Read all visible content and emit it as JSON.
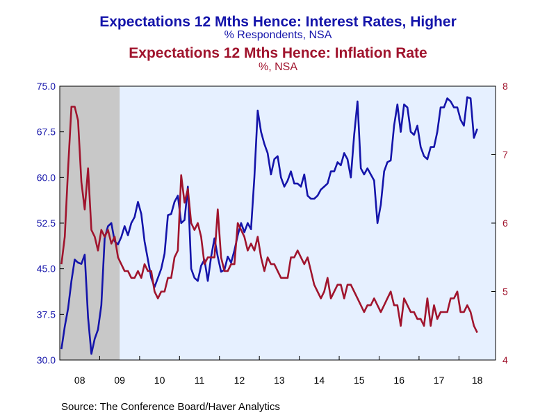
{
  "chart_data": {
    "type": "line",
    "titles": [
      {
        "title": "Expectations 12 Mths Hence: Interest Rates, Higher",
        "subtitle": "% Respondents, NSA"
      },
      {
        "title": "Expectations 12 Mths Hence: Inflation Rate",
        "subtitle": "%, NSA"
      }
    ],
    "source": "Source:  The Conference Board/Haver Analytics",
    "x_tick_labels": [
      "08",
      "09",
      "10",
      "11",
      "12",
      "13",
      "14",
      "15",
      "16",
      "17",
      "18"
    ],
    "x_range": [
      "2008-01",
      "2018-11"
    ],
    "left_axis": {
      "min": 30.0,
      "max": 75.0,
      "ticks": [
        "30.0",
        "37.5",
        "45.0",
        "52.5",
        "60.0",
        "67.5",
        "75.0"
      ]
    },
    "right_axis": {
      "min": 4,
      "max": 8,
      "ticks": [
        "4",
        "5",
        "6",
        "7",
        "8"
      ]
    },
    "recession_shading": {
      "start": "2008-01",
      "end": "2009-06",
      "color": "#c8c8c8"
    },
    "plot_background": "#e6f0ff",
    "series": [
      {
        "name": "Interest Rates, Higher",
        "axis": "left",
        "color": "#1414aa",
        "start": "2008-01",
        "values": [
          31.8,
          35.5,
          38.5,
          43.0,
          46.5,
          46.0,
          45.8,
          47.3,
          37.0,
          31.0,
          33.5,
          35.0,
          39.0,
          50.0,
          52.0,
          52.5,
          49.5,
          49.0,
          50.2,
          52.0,
          50.5,
          52.5,
          53.5,
          56.0,
          54.0,
          49.5,
          46.5,
          43.5,
          42.0,
          43.5,
          45.0,
          47.5,
          53.8,
          54.0,
          56.0,
          57.0,
          52.5,
          53.0,
          58.5,
          45.0,
          43.5,
          43.0,
          45.5,
          46.5,
          43.0,
          47.0,
          50.0,
          47.0,
          44.5,
          44.8,
          47.0,
          46.0,
          48.0,
          50.5,
          52.5,
          51.0,
          52.5,
          51.5,
          60.0,
          71.0,
          67.5,
          65.5,
          64.0,
          60.5,
          63.0,
          63.5,
          60.0,
          58.5,
          59.5,
          61.0,
          59.0,
          59.0,
          58.5,
          60.5,
          57.0,
          56.5,
          56.5,
          57.0,
          58.0,
          58.5,
          59.0,
          61.0,
          61.0,
          62.5,
          62.0,
          64.0,
          63.0,
          60.0,
          67.0,
          72.5,
          61.5,
          60.5,
          61.5,
          60.5,
          59.5,
          52.5,
          55.5,
          61.0,
          62.5,
          62.8,
          68.5,
          72.0,
          67.5,
          72.0,
          71.5,
          67.5,
          67.0,
          68.5,
          65.0,
          63.5,
          63.0,
          65.0,
          65.0,
          67.5,
          71.5,
          71.5,
          73.0,
          72.5,
          71.5,
          71.5,
          69.5,
          68.5,
          73.2,
          73.0,
          66.5,
          68.0
        ]
      },
      {
        "name": "Inflation Rate",
        "axis": "right",
        "color": "#a0142d",
        "start": "2008-01",
        "values": [
          5.4,
          5.8,
          6.8,
          7.7,
          7.7,
          7.5,
          6.6,
          6.2,
          6.8,
          5.9,
          5.8,
          5.6,
          5.9,
          5.8,
          5.9,
          5.7,
          5.8,
          5.5,
          5.4,
          5.3,
          5.3,
          5.2,
          5.2,
          5.3,
          5.2,
          5.4,
          5.3,
          5.3,
          5.0,
          4.9,
          5.0,
          5.0,
          5.2,
          5.2,
          5.5,
          5.6,
          6.7,
          6.3,
          6.5,
          6.0,
          5.9,
          6.0,
          5.8,
          5.4,
          5.5,
          5.5,
          5.5,
          6.2,
          5.5,
          5.3,
          5.3,
          5.4,
          5.4,
          6.0,
          5.9,
          5.8,
          5.6,
          5.7,
          5.6,
          5.8,
          5.5,
          5.3,
          5.5,
          5.4,
          5.4,
          5.3,
          5.2,
          5.2,
          5.2,
          5.5,
          5.5,
          5.6,
          5.5,
          5.4,
          5.5,
          5.3,
          5.1,
          5.0,
          4.9,
          5.0,
          5.2,
          4.9,
          5.0,
          5.1,
          5.1,
          4.9,
          5.1,
          5.1,
          5.0,
          4.9,
          4.8,
          4.7,
          4.8,
          4.8,
          4.9,
          4.8,
          4.7,
          4.8,
          4.9,
          5.0,
          4.8,
          4.8,
          4.5,
          4.9,
          4.8,
          4.7,
          4.7,
          4.6,
          4.6,
          4.5,
          4.9,
          4.5,
          4.8,
          4.6,
          4.7,
          4.7,
          4.7,
          4.9,
          4.9,
          5.0,
          4.7,
          4.7,
          4.8,
          4.7,
          4.5,
          4.4
        ]
      }
    ]
  }
}
